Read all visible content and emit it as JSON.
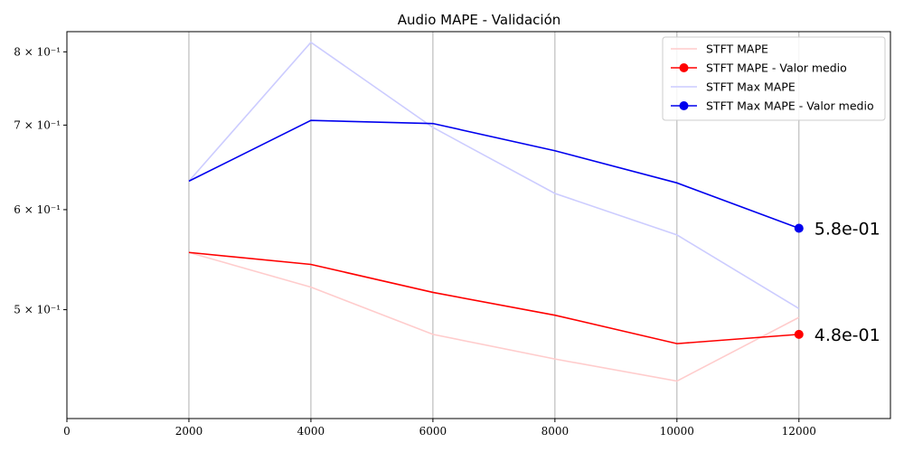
{
  "chart_data": {
    "type": "line",
    "title": "Audio MAPE - Validación",
    "xlabel": "",
    "ylabel": "",
    "y_scale": "log",
    "xlim": [
      0,
      13500
    ],
    "ylim": [
      0.41,
      0.83
    ],
    "grid": "x-only",
    "legend_position": "top-right",
    "x_ticks": [
      {
        "value": 0,
        "label": "0"
      },
      {
        "value": 2000,
        "label": "2000"
      },
      {
        "value": 4000,
        "label": "4000"
      },
      {
        "value": 6000,
        "label": "6000"
      },
      {
        "value": 8000,
        "label": "8000"
      },
      {
        "value": 10000,
        "label": "10000"
      },
      {
        "value": 12000,
        "label": "12000"
      }
    ],
    "y_ticks": [
      {
        "value": 0.5,
        "label": "5 × 10⁻¹"
      },
      {
        "value": 0.6,
        "label": "6 × 10⁻¹"
      },
      {
        "value": 0.7,
        "label": "7 × 10⁻¹"
      },
      {
        "value": 0.8,
        "label": "8 × 10⁻¹"
      }
    ],
    "x": [
      2000,
      4000,
      6000,
      8000,
      10000,
      12000
    ],
    "series": [
      {
        "name": "STFT MAPE",
        "color": "#ffcccc",
        "marker": false,
        "values": [
          0.555,
          0.521,
          0.478,
          0.457,
          0.439,
          0.493
        ]
      },
      {
        "name": "STFT MAPE - Valor medio",
        "color": "#ff0000",
        "marker": "end",
        "values": [
          0.555,
          0.543,
          0.516,
          0.495,
          0.47,
          0.478
        ]
      },
      {
        "name": "STFT Max MAPE",
        "color": "#ccccff",
        "marker": false,
        "values": [
          0.632,
          0.814,
          0.697,
          0.618,
          0.573,
          0.501
        ]
      },
      {
        "name": "STFT Max MAPE - Valor medio",
        "color": "#0000ee",
        "marker": "end",
        "values": [
          0.632,
          0.706,
          0.702,
          0.668,
          0.63,
          0.58
        ]
      }
    ],
    "annotations": [
      {
        "series_index": 3,
        "text": "5.8e-01"
      },
      {
        "series_index": 1,
        "text": "4.8e-01"
      }
    ]
  }
}
